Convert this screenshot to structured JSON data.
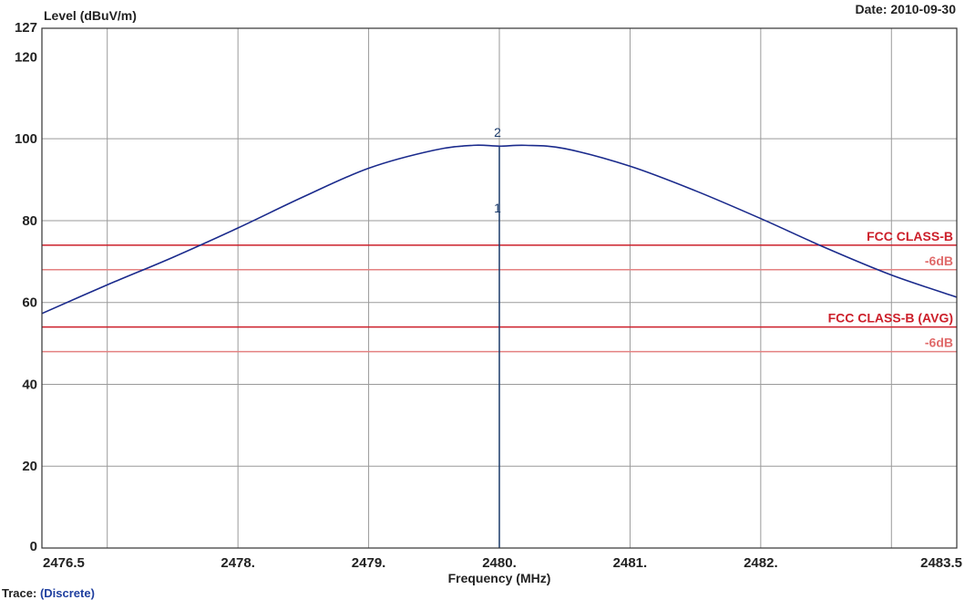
{
  "header": {
    "date_label": "Date: 2010-09-30"
  },
  "footer": {
    "trace_label": "Trace:",
    "trace_value": "(Discrete)"
  },
  "chart_data": {
    "type": "line",
    "xlabel": "Frequency (MHz)",
    "ylabel": "Level (dBuV/m)",
    "xlim": [
      2476.5,
      2483.5
    ],
    "ylim": [
      0,
      127
    ],
    "x_ticks": [
      {
        "value": 2476.5,
        "label": "2476.5"
      },
      {
        "value": 2478,
        "label": "2478."
      },
      {
        "value": 2479,
        "label": "2479."
      },
      {
        "value": 2480,
        "label": "2480."
      },
      {
        "value": 2481,
        "label": "2481."
      },
      {
        "value": 2482,
        "label": "2482."
      },
      {
        "value": 2483.5,
        "label": "2483.5"
      }
    ],
    "x_gridlines": [
      2477,
      2478,
      2479,
      2480,
      2481,
      2482,
      2483
    ],
    "y_ticks": [
      {
        "value": 0,
        "label": "0"
      },
      {
        "value": 20,
        "label": "20"
      },
      {
        "value": 40,
        "label": "40"
      },
      {
        "value": 60,
        "label": "60"
      },
      {
        "value": 80,
        "label": "80"
      },
      {
        "value": 100,
        "label": "100"
      },
      {
        "value": 120,
        "label": "120"
      },
      {
        "value": 127,
        "label": "127"
      }
    ],
    "y_gridlines": [
      20,
      40,
      60,
      80,
      100
    ],
    "grid": true,
    "series": [
      {
        "color": "#1a2a8c",
        "x": [
          2476.5,
          2477.0,
          2477.5,
          2478.0,
          2478.5,
          2479.0,
          2479.5,
          2479.8,
          2480.0,
          2480.2,
          2480.5,
          2481.0,
          2481.5,
          2482.0,
          2482.5,
          2483.0,
          2483.5
        ],
        "y": [
          57.3,
          64.3,
          71.0,
          78.2,
          85.8,
          92.8,
          97.2,
          98.4,
          98.2,
          98.4,
          97.6,
          93.3,
          87.3,
          80.5,
          73.3,
          66.7,
          61.3
        ]
      }
    ],
    "limit_lines": [
      {
        "label": "FCC CLASS-B",
        "value": 74,
        "color": "#cc1f2a",
        "label_color": "#cc1f2a"
      },
      {
        "label": "-6dB",
        "value": 68,
        "color": "#e48181",
        "label_color": "#e06a6a"
      },
      {
        "label": "FCC CLASS-B (AVG)",
        "value": 54,
        "color": "#cc1f2a",
        "label_color": "#cc1f2a"
      },
      {
        "label": "-6dB",
        "value": 48,
        "color": "#e48181",
        "label_color": "#e06a6a"
      }
    ],
    "markers": [
      {
        "label": "1",
        "x": 2480.0,
        "y": 82
      },
      {
        "label": "2",
        "x": 2480.0,
        "y": 100.5
      }
    ],
    "marker_line": {
      "x": 2480.0,
      "y_from": 0,
      "y_to": 98.2
    }
  }
}
